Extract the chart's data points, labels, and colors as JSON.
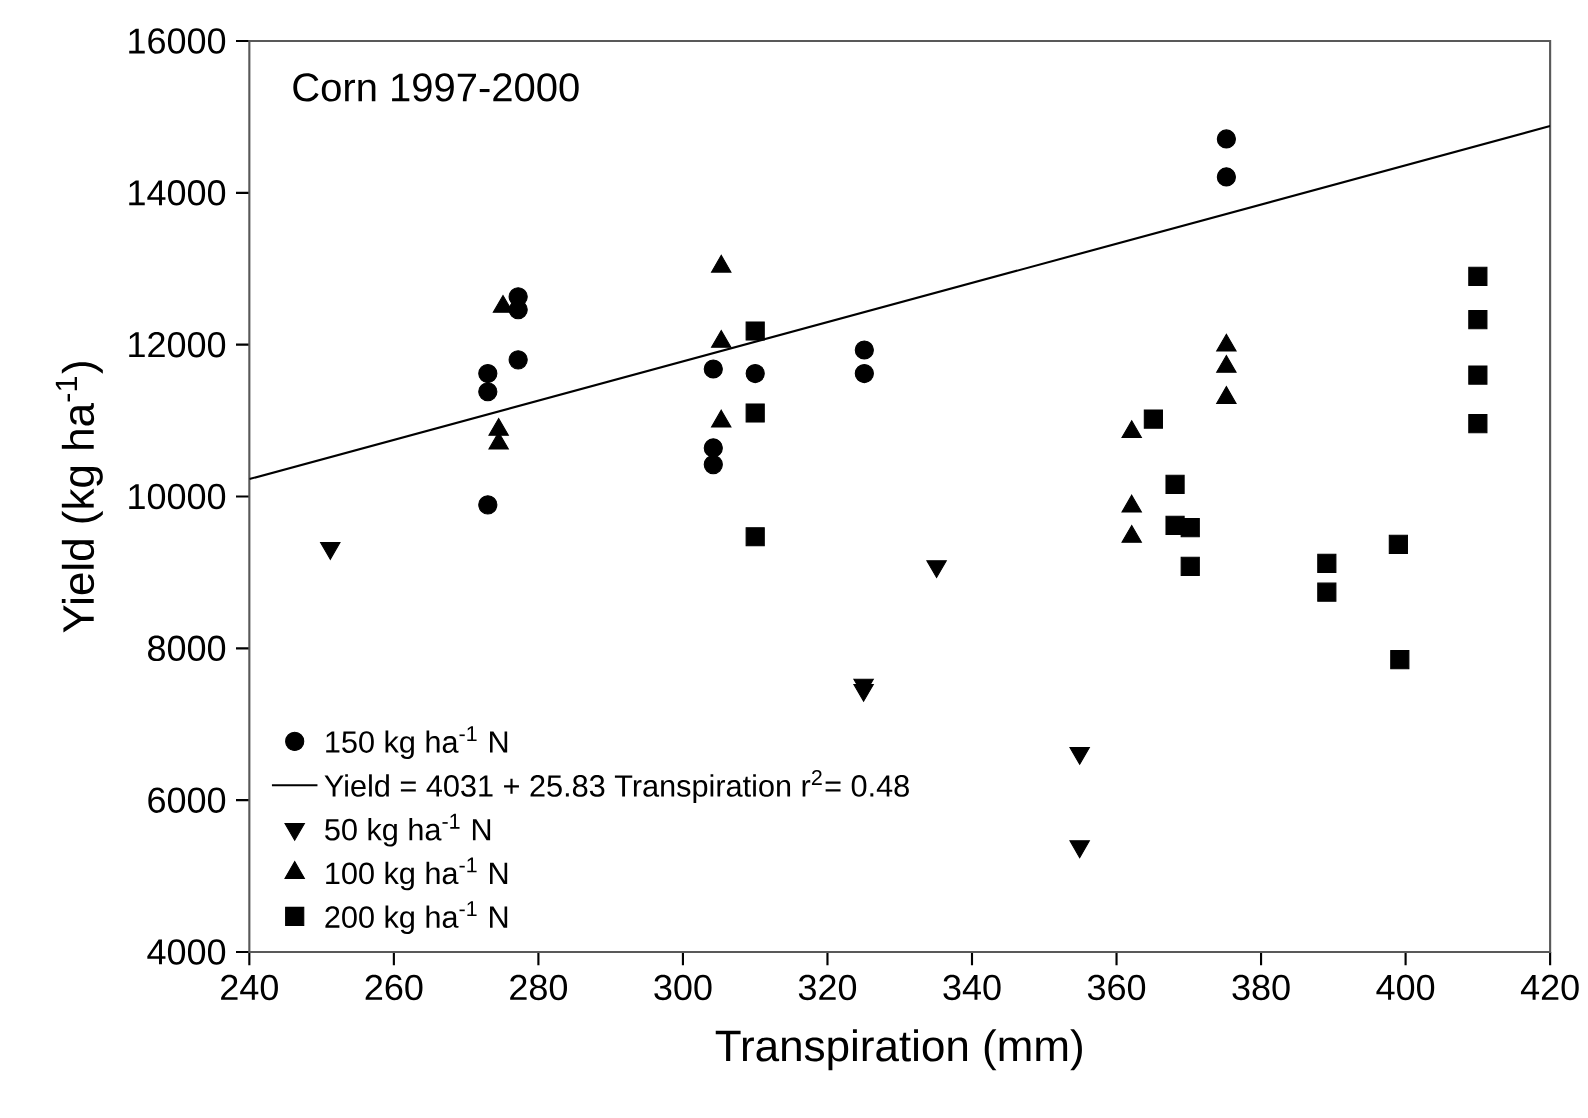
{
  "chart_data": {
    "type": "scatter",
    "xlabel": "Transpiration (mm)",
    "ylabel": "Yield (kg ha$^{-1}$)",
    "annotations": [
      "Corn 1997-2000"
    ],
    "xlim": [
      240,
      420
    ],
    "ylim": [
      4000,
      16000
    ],
    "xticks": [
      240,
      260,
      280,
      300,
      320,
      340,
      360,
      380,
      400,
      420
    ],
    "yticks": [
      4000,
      6000,
      8000,
      10000,
      12000,
      14000,
      16000
    ],
    "grid": false,
    "legend": "bottom left",
    "series": [
      {
        "name": "150 kg ha$^{-1}$ N",
        "marker": "circle",
        "color": "#000000",
        "x": [
          273,
          273,
          273,
          277.2,
          277.2,
          277.2,
          304.2,
          304.2,
          304.2,
          310,
          325.1,
          325.1,
          375.2,
          375.2
        ],
        "values": [
          11620,
          11380,
          9890,
          12630,
          12460,
          11800,
          11680,
          10640,
          10420,
          11620,
          11930,
          11620,
          14710,
          14210
        ]
      },
      {
        "name": "Yield = 4031 + 25.83 Transpiration r$^{2}$= 0.48",
        "type": "line",
        "marker": "none",
        "line_style": "solid",
        "color": "#000000",
        "x": [
          240,
          420
        ],
        "values": [
          10230,
          14880
        ]
      },
      {
        "name": "50 kg ha$^{-1}$ N",
        "marker": "triangle-down",
        "color": "#000000",
        "x": [
          251.2,
          325,
          325,
          335.1,
          354.9,
          354.9
        ],
        "values": [
          9320,
          7520,
          7450,
          9080,
          6620,
          5390
        ]
      },
      {
        "name": "100 kg ha$^{-1}$ N",
        "marker": "triangle",
        "color": "#000000",
        "x": [
          275.1,
          274.5,
          274.5,
          305.3,
          305.3,
          305.3,
          362.1,
          362.1,
          362.1,
          375.2,
          375.2,
          375.2
        ],
        "values": [
          12500,
          10880,
          10700,
          13030,
          12040,
          10990,
          10850,
          9870,
          9470,
          11990,
          11710,
          11300
        ]
      },
      {
        "name": "200 kg ha$^{-1}$ N",
        "marker": "square",
        "color": "#000000",
        "x": [
          310,
          310,
          310,
          365.1,
          368.1,
          368.1,
          370.2,
          370.2,
          389.1,
          389.1,
          399,
          399.2,
          410,
          410,
          410,
          410
        ],
        "values": [
          12180,
          11100,
          9470,
          11020,
          10160,
          9620,
          9590,
          9080,
          9120,
          8740,
          9370,
          7850,
          12900,
          12330,
          11600,
          10960
        ]
      }
    ]
  }
}
